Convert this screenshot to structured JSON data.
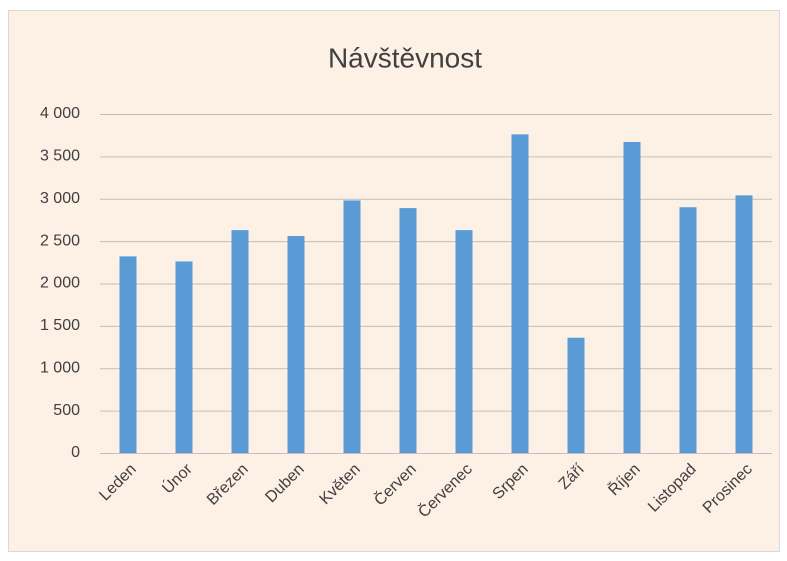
{
  "chart_data": {
    "type": "bar",
    "title": "Návštěvnost",
    "categories": [
      "Leden",
      "Únor",
      "Březen",
      "Duben",
      "Květen",
      "Červen",
      "Červenec",
      "Srpen",
      "Září",
      "Říjen",
      "Listopad",
      "Prosinec"
    ],
    "values": [
      2320,
      2260,
      2630,
      2560,
      2980,
      2890,
      2630,
      3760,
      1360,
      3670,
      2900,
      3040
    ],
    "color": "#5b9bd5",
    "ylim": [
      0,
      4000
    ],
    "yticks": [
      0,
      500,
      {
        "value": 1000,
        "label": "1 000"
      },
      {
        "value": 1500,
        "label": "1 500"
      },
      {
        "value": 2000,
        "label": "2 000"
      },
      {
        "value": 2500,
        "label": "2 500"
      },
      {
        "value": 3000,
        "label": "3 000"
      },
      {
        "value": 3500,
        "label": "3 500"
      },
      {
        "value": 4000,
        "label": "4 000"
      }
    ],
    "grid": true
  }
}
